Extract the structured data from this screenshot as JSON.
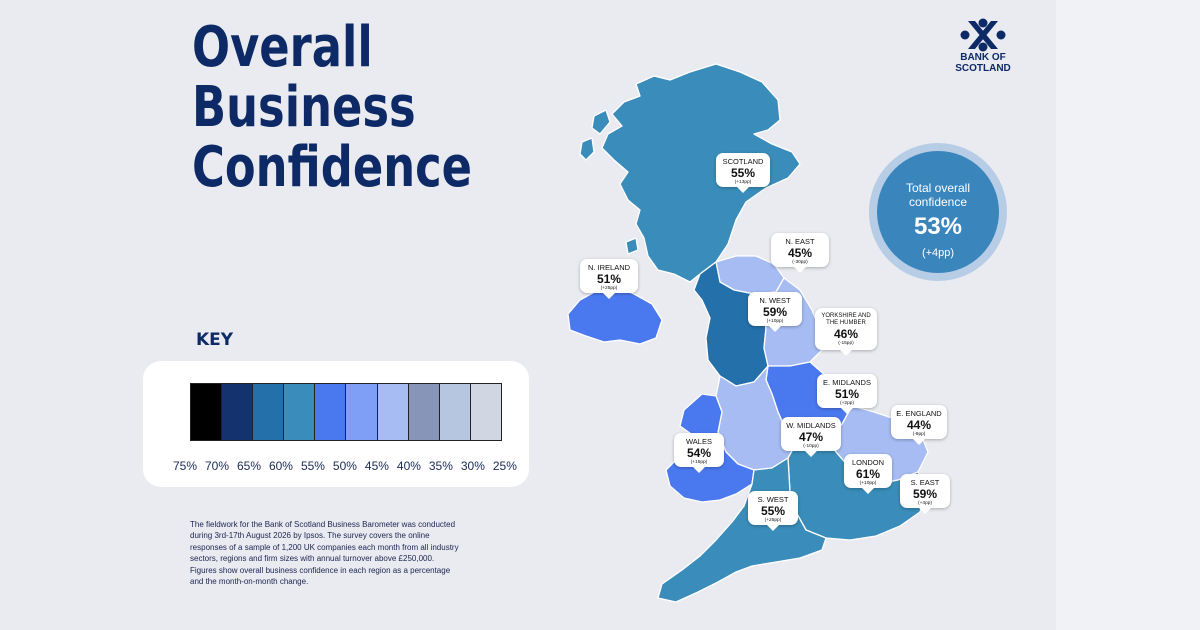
{
  "title": {
    "line1": "Overall",
    "line2": "Business",
    "line3": "Confidence"
  },
  "brand": {
    "line1": "BANK OF",
    "line2": "SCOTLAND",
    "logo_icon": "saltire-icon",
    "color": "#0d2a66"
  },
  "total": {
    "label": "Total overall confidence",
    "value": "53%",
    "change": "(+4pp)"
  },
  "key": {
    "heading": "KEY",
    "swatch_colors": [
      "#000000",
      "#14336e",
      "#2470ab",
      "#3a8dba",
      "#4a78ef",
      "#7e9ff5",
      "#a6bcf2",
      "#8796b8",
      "#b7c6e0",
      "#d0d6e2"
    ],
    "ticks": [
      "75%",
      "70%",
      "65%",
      "60%",
      "55%",
      "50%",
      "45%",
      "40%",
      "35%",
      "30%",
      "25%"
    ]
  },
  "regions": [
    {
      "id": "scotland",
      "name": "SCOTLAND",
      "value": "55%",
      "change": "(+13pp)"
    },
    {
      "id": "n-east",
      "name": "N. EAST",
      "value": "45%",
      "change": "(-30pp)"
    },
    {
      "id": "n-ireland",
      "name": "N. IRELAND",
      "value": "51%",
      "change": "(+25pp)"
    },
    {
      "id": "n-west",
      "name": "N. WEST",
      "value": "59%",
      "change": "(+10pp)"
    },
    {
      "id": "yorkshire",
      "name": "YORKSHIRE AND THE HUMBER",
      "value": "46%",
      "change": "(-15pp)"
    },
    {
      "id": "e-midlands",
      "name": "E. MIDLANDS",
      "value": "51%",
      "change": "(+2pp)"
    },
    {
      "id": "e-england",
      "name": "E. ENGLAND",
      "value": "44%",
      "change": "(-9pp)"
    },
    {
      "id": "w-midlands",
      "name": "W. MIDLANDS",
      "value": "47%",
      "change": "(-10pp)"
    },
    {
      "id": "wales",
      "name": "WALES",
      "value": "54%",
      "change": "(+15pp)"
    },
    {
      "id": "london",
      "name": "LONDON",
      "value": "61%",
      "change": "(+10pp)"
    },
    {
      "id": "s-east",
      "name": "S. EAST",
      "value": "59%",
      "change": "(+4pp)"
    },
    {
      "id": "s-west",
      "name": "S. WEST",
      "value": "55%",
      "change": "(+25pp)"
    }
  ],
  "note": "The fieldwork for the Bank of Scotland Business Barometer was conducted during 3rd-17th August 2026 by Ipsos. The survey covers the online responses of a sample of 1,200 UK companies each month from all industry sectors, regions and firm sizes with annual turnover above £250,000. Figures show overall business confidence in each region as a percentage and the month-on-month change."
}
